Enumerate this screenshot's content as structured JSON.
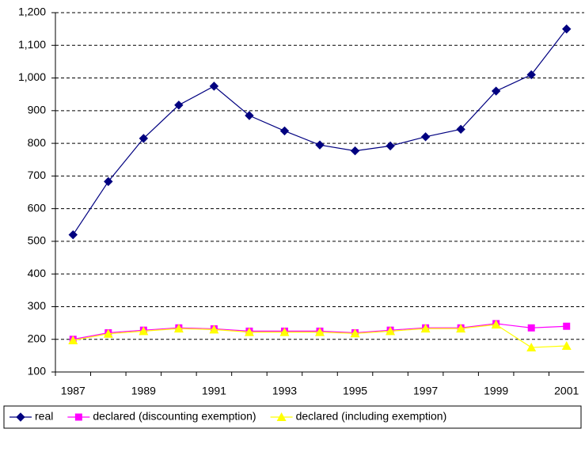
{
  "chart_data": {
    "type": "line",
    "categories": [
      "1987",
      null,
      "1989",
      null,
      "1991",
      null,
      "1993",
      null,
      "1995",
      null,
      "1997",
      null,
      "1999",
      null,
      "2001"
    ],
    "series": [
      {
        "name": "real",
        "color": "#000080",
        "marker": "diamond",
        "values": [
          520,
          683,
          815,
          917,
          975,
          885,
          838,
          795,
          777,
          792,
          820,
          843,
          960,
          1010,
          1150
        ]
      },
      {
        "name": "declared (discounting exemption)",
        "color": "#ff00ff",
        "marker": "square",
        "values": [
          200,
          220,
          228,
          235,
          232,
          225,
          225,
          225,
          220,
          228,
          235,
          235,
          248,
          235,
          240
        ]
      },
      {
        "name": "declared (including exemption)",
        "color": "#ffff00",
        "marker": "triangle",
        "values": [
          197,
          217,
          225,
          233,
          230,
          222,
          222,
          222,
          218,
          225,
          233,
          233,
          245,
          175,
          180
        ]
      }
    ],
    "ylim": [
      100,
      1200
    ],
    "yticks": [
      100,
      200,
      300,
      400,
      500,
      600,
      700,
      800,
      900,
      {
        "value": 1000,
        "label": "1,000"
      },
      {
        "value": 1100,
        "label": "1,100"
      },
      {
        "value": 1200,
        "label": "1,200"
      }
    ],
    "grid": true,
    "legend": "bottom"
  }
}
